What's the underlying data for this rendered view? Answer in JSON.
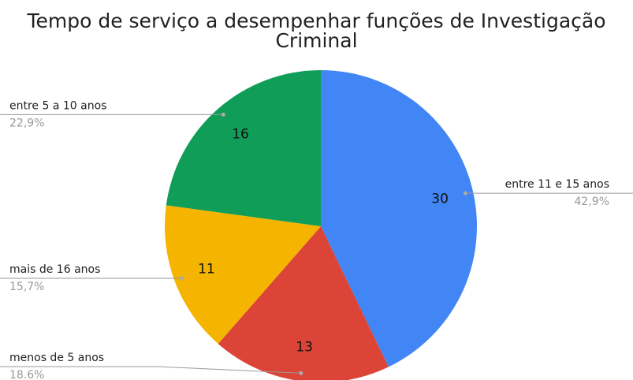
{
  "chart_data": {
    "type": "pie",
    "title": "Tempo de serviço a desempenhar funções de Investigação Criminal",
    "categories": [
      "entre 11 e 15 anos",
      "menos de 5 anos",
      "mais de 16 anos",
      "entre 5 a 10 anos"
    ],
    "values": [
      30,
      13,
      11,
      16
    ],
    "percent_labels": [
      "42,9%",
      "18.6%",
      "15,7%",
      "22,9%"
    ],
    "colors": [
      "#4285f4",
      "#db4437",
      "#f4b400",
      "#0f9d58"
    ]
  }
}
